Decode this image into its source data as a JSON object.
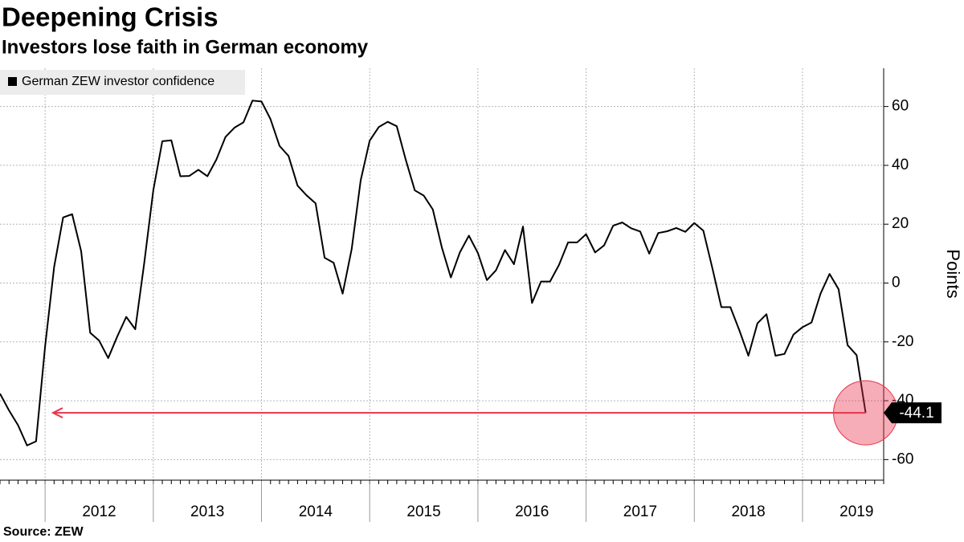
{
  "chart_data": {
    "type": "line",
    "title": "Deepening Crisis",
    "subtitle": "Investors lose faith in German economy",
    "source": "Source: ZEW",
    "y_axis_label": "Points",
    "legend": "top-left",
    "grid": true,
    "xlim": [
      "2011-08",
      "2019-10"
    ],
    "xticks": [
      {
        "value": "2012-01",
        "label": "2012"
      },
      {
        "value": "2013-01",
        "label": "2013"
      },
      {
        "value": "2014-01",
        "label": "2014"
      },
      {
        "value": "2015-01",
        "label": "2015"
      },
      {
        "value": "2016-01",
        "label": "2016"
      },
      {
        "value": "2017-01",
        "label": "2017"
      },
      {
        "value": "2018-01",
        "label": "2018"
      },
      {
        "value": "2019-01",
        "label": "2019"
      }
    ],
    "ylim": [
      -67,
      73
    ],
    "yticks": [
      60,
      40,
      20,
      0,
      -20,
      -40,
      -60
    ],
    "highlight_color": "#e8334a",
    "series": [
      {
        "name": "German ZEW investor confidence",
        "color": "#000000",
        "x": [
          "2011-08",
          "2011-09",
          "2011-10",
          "2011-11",
          "2011-12",
          "2012-01",
          "2012-02",
          "2012-03",
          "2012-04",
          "2012-05",
          "2012-06",
          "2012-07",
          "2012-08",
          "2012-09",
          "2012-10",
          "2012-11",
          "2012-12",
          "2013-01",
          "2013-02",
          "2013-03",
          "2013-04",
          "2013-05",
          "2013-06",
          "2013-07",
          "2013-08",
          "2013-09",
          "2013-10",
          "2013-11",
          "2013-12",
          "2014-01",
          "2014-02",
          "2014-03",
          "2014-04",
          "2014-05",
          "2014-06",
          "2014-07",
          "2014-08",
          "2014-09",
          "2014-10",
          "2014-11",
          "2014-12",
          "2015-01",
          "2015-02",
          "2015-03",
          "2015-04",
          "2015-05",
          "2015-06",
          "2015-07",
          "2015-08",
          "2015-09",
          "2015-10",
          "2015-11",
          "2015-12",
          "2016-01",
          "2016-02",
          "2016-03",
          "2016-04",
          "2016-05",
          "2016-06",
          "2016-07",
          "2016-08",
          "2016-09",
          "2016-10",
          "2016-11",
          "2016-12",
          "2017-01",
          "2017-02",
          "2017-03",
          "2017-04",
          "2017-05",
          "2017-06",
          "2017-07",
          "2017-08",
          "2017-09",
          "2017-10",
          "2017-11",
          "2017-12",
          "2018-01",
          "2018-02",
          "2018-03",
          "2018-04",
          "2018-05",
          "2018-06",
          "2018-07",
          "2018-08",
          "2018-09",
          "2018-10",
          "2018-11",
          "2018-12",
          "2019-01",
          "2019-02",
          "2019-03",
          "2019-04",
          "2019-05",
          "2019-06",
          "2019-07",
          "2019-08"
        ],
        "values": [
          -37.6,
          -43.3,
          -48.3,
          -55.2,
          -53.8,
          -21.6,
          5.4,
          22.3,
          23.4,
          10.8,
          -16.9,
          -19.6,
          -25.5,
          -18.2,
          -11.5,
          -15.7,
          6.9,
          31.5,
          48.2,
          48.5,
          36.3,
          36.4,
          38.5,
          36.3,
          42.0,
          49.6,
          52.8,
          54.6,
          62.0,
          61.7,
          55.7,
          46.6,
          43.2,
          33.1,
          29.8,
          27.1,
          8.6,
          6.9,
          -3.6,
          11.5,
          34.9,
          48.4,
          53.0,
          54.8,
          53.3,
          41.9,
          31.5,
          29.7,
          25.0,
          12.1,
          1.9,
          10.4,
          16.1,
          10.2,
          1.0,
          4.3,
          11.2,
          6.4,
          19.2,
          -6.8,
          0.5,
          0.5,
          6.2,
          13.8,
          13.8,
          16.6,
          10.4,
          12.8,
          19.5,
          20.6,
          18.6,
          17.5,
          10.0,
          17.0,
          17.6,
          18.7,
          17.4,
          20.4,
          17.8,
          5.1,
          -8.2,
          -8.2,
          -16.1,
          -24.7,
          -13.7,
          -10.6,
          -24.7,
          -24.1,
          -17.5,
          -15.0,
          -13.4,
          -3.6,
          3.1,
          -2.1,
          -21.1,
          -24.5,
          -44.1
        ]
      }
    ]
  }
}
